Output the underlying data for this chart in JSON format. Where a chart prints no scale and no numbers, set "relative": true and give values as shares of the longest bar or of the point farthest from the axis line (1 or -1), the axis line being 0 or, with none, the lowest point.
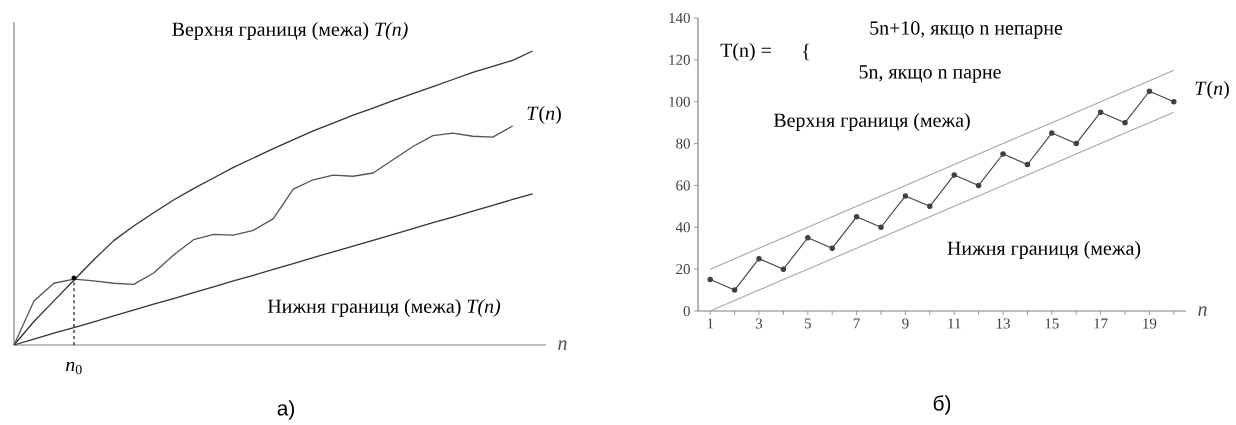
{
  "chart_data": [
    {
      "type": "line",
      "relative": true,
      "xlabel": "*n*",
      "categories": [
        null,
        null,
        null,
        null,
        null,
        null,
        null,
        null,
        null,
        null,
        null,
        null,
        null,
        null,
        null,
        null,
        null,
        null,
        null,
        null,
        null,
        null,
        null,
        null,
        null,
        null,
        null
      ],
      "series": [
        {
          "name": "Верхня границя (межа) *T(n)*",
          "color": "#333333",
          "values": [
            0,
            0.08,
            0.15,
            0.22,
            0.29,
            0.355,
            0.405,
            0.45,
            0.493,
            0.532,
            0.568,
            0.604,
            0.636,
            0.668,
            0.698,
            0.728,
            0.755,
            0.782,
            0.806,
            0.831,
            0.855,
            0.879,
            0.903,
            0.927,
            0.948,
            0.968,
            1
          ]
        },
        {
          "name": "Нижня границя (межа) *T(n)*",
          "color": "#333333",
          "values": [
            0,
            0.02,
            0.04,
            0.059,
            0.079,
            0.099,
            0.119,
            0.139,
            0.158,
            0.178,
            0.198,
            0.218,
            0.237,
            0.257,
            0.277,
            0.297,
            0.317,
            0.336,
            0.356,
            0.376,
            0.396,
            0.416,
            0.435,
            0.455,
            0.475,
            0.495,
            0.514
          ]
        },
        {
          "name": "*T*(*n*)",
          "color": "#555555",
          "values": [
            0,
            0.15,
            0.21,
            0.224,
            0.218,
            0.21,
            0.206,
            0.245,
            0.306,
            0.358,
            0.376,
            0.374,
            0.39,
            0.43,
            0.53,
            0.562,
            0.578,
            0.574,
            0.585,
            0.63,
            0.675,
            0.712,
            0.721,
            0.71,
            0.707,
            0.745,
            null
          ]
        }
      ],
      "annotations": [
        "*n*$_{0}$",
        "а)"
      ]
    },
    {
      "type": "line",
      "xlim": [
        0.5,
        20.5
      ],
      "ylim": [
        0,
        140
      ],
      "xlabel": "*n*",
      "xticks": [
        1,
        {
          "value": 2,
          "label": null
        },
        3,
        {
          "value": 4,
          "label": null
        },
        5,
        {
          "value": 6,
          "label": null
        },
        7,
        {
          "value": 8,
          "label": null
        },
        9,
        {
          "value": 10,
          "label": null
        },
        11,
        {
          "value": 12,
          "label": null
        },
        13,
        {
          "value": 14,
          "label": null
        },
        15,
        {
          "value": 16,
          "label": null
        },
        17,
        {
          "value": 18,
          "label": null
        },
        19,
        {
          "value": 20,
          "label": null
        }
      ],
      "yticks": [
        0,
        20,
        40,
        60,
        80,
        100,
        120,
        140
      ],
      "x": [
        1,
        2,
        3,
        4,
        5,
        6,
        7,
        8,
        9,
        10,
        11,
        12,
        13,
        14,
        15,
        16,
        17,
        18,
        19,
        20
      ],
      "series": [
        {
          "name": "Верхня границя (межа)",
          "color": "#a6a6a6",
          "values": [
            20,
            25,
            30,
            35,
            40,
            45,
            50,
            55,
            60,
            65,
            70,
            75,
            80,
            85,
            90,
            95,
            100,
            105,
            110,
            115
          ]
        },
        {
          "name": "Нижня границя (межа)",
          "color": "#a6a6a6",
          "values": [
            0,
            5,
            10,
            15,
            20,
            25,
            30,
            35,
            40,
            45,
            50,
            55,
            60,
            65,
            70,
            75,
            80,
            85,
            90,
            95
          ]
        },
        {
          "name": "*T*(*n*)",
          "color": "#404040",
          "marker": "circle",
          "values": [
            15,
            10,
            25,
            20,
            35,
            30,
            45,
            40,
            55,
            50,
            65,
            60,
            75,
            70,
            85,
            80,
            95,
            90,
            105,
            100
          ]
        }
      ],
      "annotations": [
        "T(n) =",
        "{",
        "5n+10, якщо n непарне",
        "5n, якщо n парне",
        "б)"
      ]
    }
  ]
}
